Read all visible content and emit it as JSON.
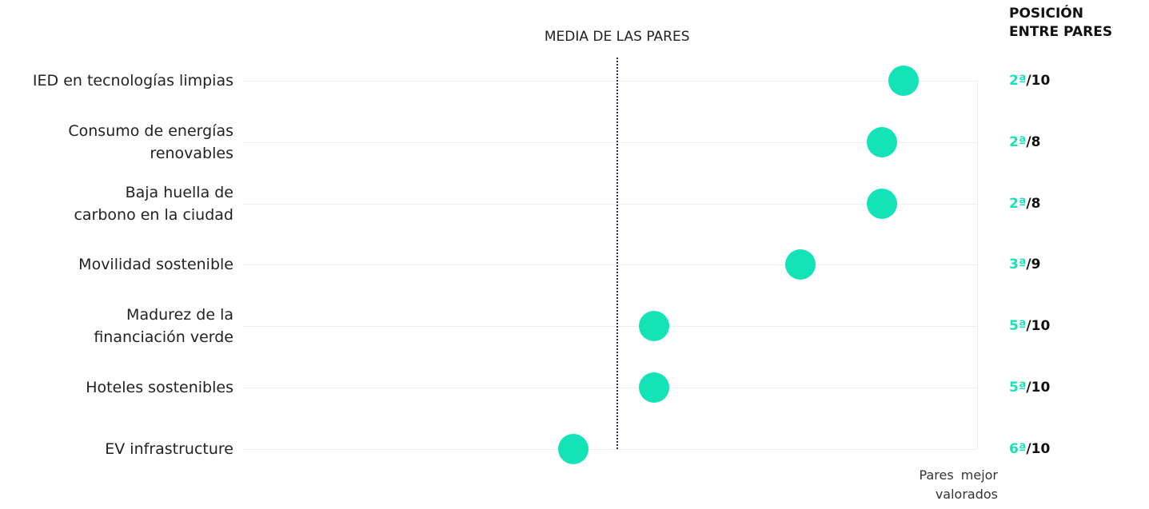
{
  "chart_data": {
    "type": "dot",
    "header": "POSICIÓN\nENTRE PARES",
    "mean_label": "MEDIA DE LAS PARES",
    "mean": 51,
    "footer": "Pares mejor\nvalorados",
    "categories": [
      "IED en tecnologías limpias",
      "Consumo de energías\nrenovables",
      "Baja huella de\ncarbono en la ciudad",
      "Movilidad sostenible",
      "Madurez de la\nfinanciación verde",
      "Hoteles sostenibles",
      "EV infrastructure"
    ],
    "values": [
      90,
      87,
      87,
      76,
      56,
      56,
      45
    ],
    "xlim": [
      0,
      100
    ],
    "color": "#14e3b8",
    "rank_labels": [
      "2ª",
      "2ª",
      "2ª",
      "3ª",
      "5ª",
      "5ª",
      "6ª"
    ],
    "totals": [
      "/10",
      "/8",
      "/8",
      "/9",
      "/10",
      "/10",
      "/10"
    ],
    "grid": true
  }
}
